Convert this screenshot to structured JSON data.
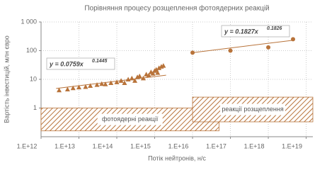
{
  "chart_data": {
    "type": "scatter",
    "title": "Порівняння процесу розщеплення фотоядерних реакцій",
    "x_label": "Потік нейтронів, н/с",
    "y_label": "Вартість інвестицій, млн євро",
    "xscale": "log",
    "yscale": "log",
    "grid": true,
    "xlim": [
      1000000000000.0,
      1.5e+19
    ],
    "xticks": [
      {
        "value": 1000000000000.0,
        "label": "1.E+12"
      },
      {
        "value": 10000000000000.0,
        "label": "1.E+13"
      },
      {
        "value": 100000000000000.0,
        "label": "1.E+14"
      },
      {
        "value": 1000000000000000.0,
        "label": "1.E+15"
      },
      {
        "value": 1e+16,
        "label": "1.E+16"
      },
      {
        "value": 1e+17,
        "label": "1.E+17"
      },
      {
        "value": 1e+18,
        "label": "1.E+18"
      },
      {
        "value": 1e+19,
        "label": "1.E+19"
      }
    ],
    "ylim": [
      0.1,
      1000
    ],
    "yticks": [
      1,
      10,
      100,
      {
        "value": 1000,
        "label": "1 000"
      }
    ],
    "regions": [
      {
        "label": "фотоядерні реакції",
        "xlim": [
          1000000000000.0,
          5e+16
        ],
        "ylim": [
          0.16,
          1
        ]
      },
      {
        "label": "реакції розщеплення",
        "xlim": [
          1e+16,
          1.5e+19
        ],
        "ylim": [
          0.33,
          2.4
        ]
      }
    ],
    "series": [
      {
        "color": "#b8733a",
        "marker": "triangle",
        "x": [
          3000000000000.0,
          5000000000000.0,
          7000000000000.0,
          10000000000000.0,
          15000000000000.0,
          20000000000000.0,
          30000000000000.0,
          40000000000000.0,
          50000000000000.0,
          70000000000000.0,
          100000000000000.0,
          130000000000000.0,
          160000000000000.0,
          200000000000000.0,
          250000000000000.0,
          300000000000000.0,
          350000000000000.0,
          400000000000000.0,
          500000000000000.0,
          600000000000000.0,
          700000000000000.0,
          800000000000000.0,
          900000000000000.0,
          1000000000000000.0,
          1100000000000000.0,
          1200000000000000.0,
          1300000000000000.0,
          1500000000000000.0,
          1700000000000000.0
        ],
        "values": [
          4.2,
          4.5,
          5,
          5.3,
          5.5,
          6,
          6.5,
          7,
          6.8,
          7.5,
          8,
          9,
          7.5,
          10,
          11,
          9,
          12,
          13,
          11,
          15,
          14,
          18,
          16,
          20,
          22,
          17,
          25,
          28,
          30
        ],
        "trend": {
          "x": [
            2500000000000.0,
            2000000000000000.0
          ],
          "values": [
            4.8,
            14
          ]
        },
        "equation": {
          "text": "y = 0.0759x",
          "exponent": "0.1445"
        }
      },
      {
        "color": "#b8733a",
        "marker": "circle",
        "x": [
          1e+16,
          1e+17,
          1e+18,
          4.5e+18
        ],
        "values": [
          85,
          100,
          130,
          250
        ],
        "trend": {
          "x": [
            1e+16,
            4.5e+18
          ],
          "values": [
            85,
            230
          ]
        },
        "equation": {
          "text": "y = 0.1827x",
          "exponent": "0.1826"
        }
      }
    ]
  }
}
